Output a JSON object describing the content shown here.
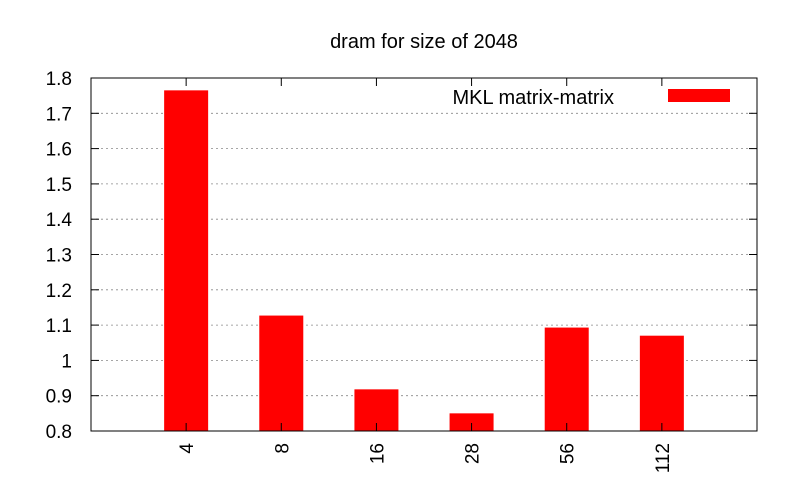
{
  "chart_data": {
    "type": "bar",
    "title": "dram for size of 2048",
    "xlabel": "",
    "ylabel": "",
    "categories": [
      "4",
      "8",
      "16",
      "28",
      "56",
      "112"
    ],
    "series": [
      {
        "name": "MKL matrix-matrix",
        "color": "#ff0000",
        "values": [
          1.765,
          1.127,
          0.918,
          0.85,
          1.093,
          1.07
        ]
      }
    ],
    "ylim": [
      0.8,
      1.8
    ],
    "yticks": [
      "0.8",
      "0.9",
      "1",
      "1.1",
      "1.2",
      "1.3",
      "1.4",
      "1.5",
      "1.6",
      "1.7",
      "1.8"
    ],
    "grid": true,
    "legend_position": "top-right"
  }
}
